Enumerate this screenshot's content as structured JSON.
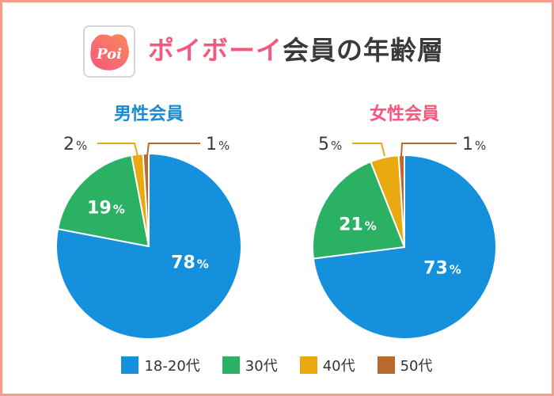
{
  "header": {
    "logo_text": "Poi",
    "title_brand": "ポイボーイ",
    "title_rest": "会員の年齢層",
    "brand_color": "#f5577e"
  },
  "colors": {
    "18-20代": "#1490dc",
    "30代": "#2ab163",
    "40代": "#eba911",
    "50代": "#b96a2e"
  },
  "legend": [
    {
      "label": "18-20代",
      "color": "#1490dc"
    },
    {
      "label": "30代",
      "color": "#2ab163"
    },
    {
      "label": "40代",
      "color": "#eba911"
    },
    {
      "label": "50代",
      "color": "#b96a2e"
    }
  ],
  "pies": {
    "male": {
      "title": "男性会員",
      "title_color": "#1a8ad4"
    },
    "female": {
      "title": "女性会員",
      "title_color": "#f5577e"
    }
  },
  "percent_symbol": "%",
  "chart_data": [
    {
      "type": "pie",
      "title": "男性会員",
      "categories": [
        "18-20代",
        "30代",
        "40代",
        "50代"
      ],
      "values": [
        78,
        19,
        2,
        1
      ],
      "unit": "%",
      "start_angle": "12 o'clock, clockwise"
    },
    {
      "type": "pie",
      "title": "女性会員",
      "categories": [
        "18-20代",
        "30代",
        "40代",
        "50代"
      ],
      "values": [
        73,
        21,
        5,
        1
      ],
      "unit": "%",
      "start_angle": "12 o'clock, clockwise"
    }
  ],
  "overall_title": "ポイボーイ会員の年齢層"
}
